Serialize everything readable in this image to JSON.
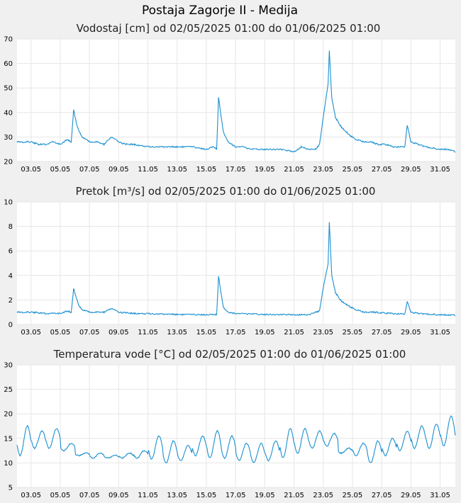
{
  "page": {
    "title": "Postaja Zagorje II - Medija"
  },
  "style": {
    "background": "#f0f0f0",
    "plot_background": "#ffffff",
    "grid_color": "#e6e6e6",
    "line_color": "#1a8fd0"
  },
  "chart_data": [
    {
      "type": "line",
      "title": "Vodostaj [cm] od 02/05/2025 01:00 do 01/06/2025 01:00",
      "xlabel": "",
      "ylabel": "",
      "grid": true,
      "ylim": [
        20,
        70
      ],
      "yticks": [
        20,
        30,
        40,
        50,
        60,
        70
      ],
      "xlim": [
        "2025-05-02 01:00",
        "2025-06-01 01:00"
      ],
      "xticks": [
        "03.05",
        "05.05",
        "07.05",
        "09.05",
        "11.05",
        "13.05",
        "15.05",
        "17.05",
        "19.05",
        "21.05",
        "23.05",
        "25.05",
        "27.05",
        "29.05",
        "31.05"
      ],
      "series": [
        {
          "x": [
            "2025-05-02 01:00",
            "2025-05-03 00:00",
            "2025-05-03 12:00",
            "2025-05-04 00:00",
            "2025-05-04 12:00",
            "2025-05-05 00:00",
            "2025-05-05 12:00",
            "2025-05-05 18:00",
            "2025-05-05 22:00",
            "2025-05-06 04:00",
            "2025-05-06 12:00",
            "2025-05-07 00:00",
            "2025-05-07 12:00",
            "2025-05-08 00:00",
            "2025-05-08 12:00",
            "2025-05-09 00:00",
            "2025-05-09 12:00",
            "2025-05-10 00:00",
            "2025-05-11 00:00",
            "2025-05-12 00:00",
            "2025-05-13 00:00",
            "2025-05-14 00:00",
            "2025-05-15 00:00",
            "2025-05-15 12:00",
            "2025-05-15 17:00",
            "2025-05-15 20:00",
            "2025-05-16 04:00",
            "2025-05-16 12:00",
            "2025-05-17 00:00",
            "2025-05-17 12:00",
            "2025-05-18 00:00",
            "2025-05-19 00:00",
            "2025-05-20 00:00",
            "2025-05-21 00:00",
            "2025-05-21 12:00",
            "2025-05-22 00:00",
            "2025-05-22 12:00",
            "2025-05-22 18:00",
            "2025-05-23 00:00",
            "2025-05-23 08:00",
            "2025-05-23 10:00",
            "2025-05-23 14:00",
            "2025-05-23 20:00",
            "2025-05-24 06:00",
            "2025-05-24 18:00",
            "2025-05-25 06:00",
            "2025-05-25 18:00",
            "2025-05-26 06:00",
            "2025-05-26 18:00",
            "2025-05-27 06:00",
            "2025-05-27 18:00",
            "2025-05-28 06:00",
            "2025-05-28 14:00",
            "2025-05-28 18:00",
            "2025-05-29 00:00",
            "2025-05-29 12:00",
            "2025-05-30 00:00",
            "2025-05-31 00:00",
            "2025-05-31 12:00",
            "2025-06-01 01:00"
          ],
          "values": [
            28,
            28,
            27,
            27,
            28,
            27,
            29,
            28,
            41,
            34,
            30,
            28,
            28,
            27,
            30,
            28,
            27,
            27,
            26,
            26,
            26,
            26,
            25,
            26,
            25,
            46,
            32,
            28,
            26,
            26,
            25,
            25,
            25,
            24,
            26,
            25,
            25,
            27,
            38,
            52,
            65,
            46,
            38,
            34,
            31,
            29,
            28,
            28,
            27,
            27,
            26,
            26,
            26,
            35,
            28,
            27,
            26,
            25,
            25,
            24
          ]
        }
      ]
    },
    {
      "type": "line",
      "title": "Pretok [m³/s] od 02/05/2025 01:00 do 01/06/2025 01:00",
      "xlabel": "",
      "ylabel": "",
      "grid": true,
      "ylim": [
        0,
        10
      ],
      "yticks": [
        0,
        2,
        4,
        6,
        8,
        10
      ],
      "xlim": [
        "2025-05-02 01:00",
        "2025-06-01 01:00"
      ],
      "xticks": [
        "03.05",
        "05.05",
        "07.05",
        "09.05",
        "11.05",
        "13.05",
        "15.05",
        "17.05",
        "19.05",
        "21.05",
        "23.05",
        "25.05",
        "27.05",
        "29.05",
        "31.05"
      ],
      "series": [
        {
          "x": [
            "2025-05-02 01:00",
            "2025-05-03 00:00",
            "2025-05-04 00:00",
            "2025-05-05 00:00",
            "2025-05-05 12:00",
            "2025-05-05 18:00",
            "2025-05-05 22:00",
            "2025-05-06 06:00",
            "2025-05-06 12:00",
            "2025-05-07 00:00",
            "2025-05-08 00:00",
            "2025-05-08 12:00",
            "2025-05-09 00:00",
            "2025-05-10 00:00",
            "2025-05-12 00:00",
            "2025-05-14 00:00",
            "2025-05-15 00:00",
            "2025-05-15 17:00",
            "2025-05-15 20:00",
            "2025-05-16 04:00",
            "2025-05-16 12:00",
            "2025-05-17 00:00",
            "2025-05-18 00:00",
            "2025-05-20 00:00",
            "2025-05-21 00:00",
            "2025-05-22 00:00",
            "2025-05-22 18:00",
            "2025-05-23 00:00",
            "2025-05-23 08:00",
            "2025-05-23 10:00",
            "2025-05-23 14:00",
            "2025-05-23 20:00",
            "2025-05-24 06:00",
            "2025-05-24 18:00",
            "2025-05-25 06:00",
            "2025-05-25 18:00",
            "2025-05-26 12:00",
            "2025-05-27 12:00",
            "2025-05-28 14:00",
            "2025-05-28 18:00",
            "2025-05-29 00:00",
            "2025-05-29 12:00",
            "2025-05-30 00:00",
            "2025-05-31 00:00",
            "2025-06-01 01:00"
          ],
          "values": [
            1.0,
            1.0,
            0.9,
            0.9,
            1.1,
            1.0,
            2.9,
            1.6,
            1.2,
            1.0,
            1.0,
            1.3,
            1.0,
            0.9,
            0.85,
            0.8,
            0.8,
            0.8,
            3.9,
            1.4,
            1.0,
            0.9,
            0.85,
            0.8,
            0.8,
            0.8,
            1.1,
            3.0,
            5.0,
            8.3,
            4.0,
            2.6,
            1.9,
            1.5,
            1.2,
            1.0,
            1.0,
            0.9,
            0.85,
            1.9,
            1.0,
            0.9,
            0.85,
            0.8,
            0.75
          ]
        }
      ]
    },
    {
      "type": "line",
      "title": "Temperatura vode [°C] od 02/05/2025 01:00 do 01/06/2025 01:00",
      "xlabel": "",
      "ylabel": "",
      "grid": true,
      "ylim": [
        5,
        30
      ],
      "yticks": [
        5,
        10,
        15,
        20,
        25,
        30
      ],
      "xlim": [
        "2025-05-02 01:00",
        "2025-06-01 01:00"
      ],
      "xticks": [
        "03.05",
        "05.05",
        "07.05",
        "09.05",
        "11.05",
        "13.05",
        "15.05",
        "17.05",
        "19.05",
        "21.05",
        "23.05",
        "25.05",
        "27.05",
        "29.05",
        "31.05"
      ],
      "series": [
        {
          "daily_min": [
            11.5,
            13.0,
            13.0,
            12.5,
            11.5,
            11.0,
            11.0,
            11.0,
            11.0,
            10.8,
            10.0,
            10.5,
            11.5,
            11.0,
            11.0,
            10.5,
            10.0,
            10.5,
            11.0,
            12.0,
            13.0,
            13.5,
            12.0,
            11.5,
            10.0,
            11.5,
            12.5,
            13.0,
            13.0,
            13.5
          ],
          "daily_max": [
            17.5,
            16.5,
            17.0,
            14.0,
            12.0,
            12.0,
            11.5,
            12.0,
            12.5,
            15.5,
            14.5,
            13.5,
            15.5,
            16.5,
            15.5,
            14.0,
            14.0,
            14.5,
            17.0,
            17.0,
            16.5,
            16.0,
            13.0,
            14.0,
            14.5,
            15.0,
            16.5,
            17.5,
            18.0,
            19.5
          ],
          "daily_peak_hour": 18,
          "end_value": 16.5
        }
      ]
    }
  ]
}
